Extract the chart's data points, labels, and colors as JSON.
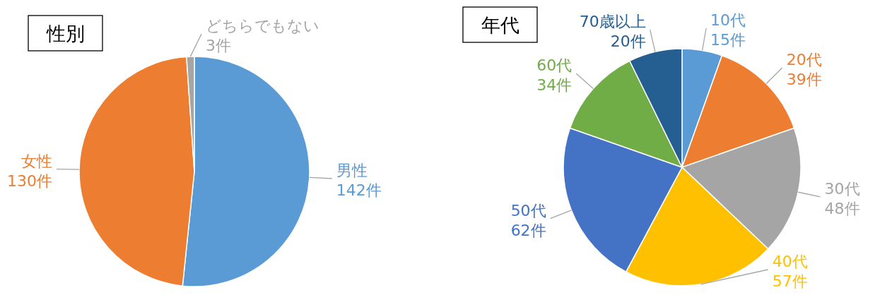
{
  "chart_data": [
    {
      "type": "pie",
      "title": "性別",
      "categories": [
        "男性",
        "女性",
        "どちらでもない"
      ],
      "values": [
        142,
        130,
        3
      ],
      "colors": [
        "#5b9bd5",
        "#ed7d31",
        "#a5a5a5"
      ],
      "value_labels": [
        "142件",
        "130件",
        "3件"
      ]
    },
    {
      "type": "pie",
      "title": "年代",
      "categories": [
        "10代",
        "20代",
        "30代",
        "40代",
        "50代",
        "60代",
        "70歳以上"
      ],
      "values": [
        15,
        39,
        48,
        57,
        62,
        34,
        20
      ],
      "colors": [
        "#5b9bd5",
        "#ed7d31",
        "#a5a5a5",
        "#ffc000",
        "#4472c4",
        "#70ad47",
        "#255e91"
      ],
      "value_labels": [
        "15件",
        "39件",
        "48件",
        "57件",
        "62件",
        "34件",
        "20件"
      ]
    }
  ]
}
